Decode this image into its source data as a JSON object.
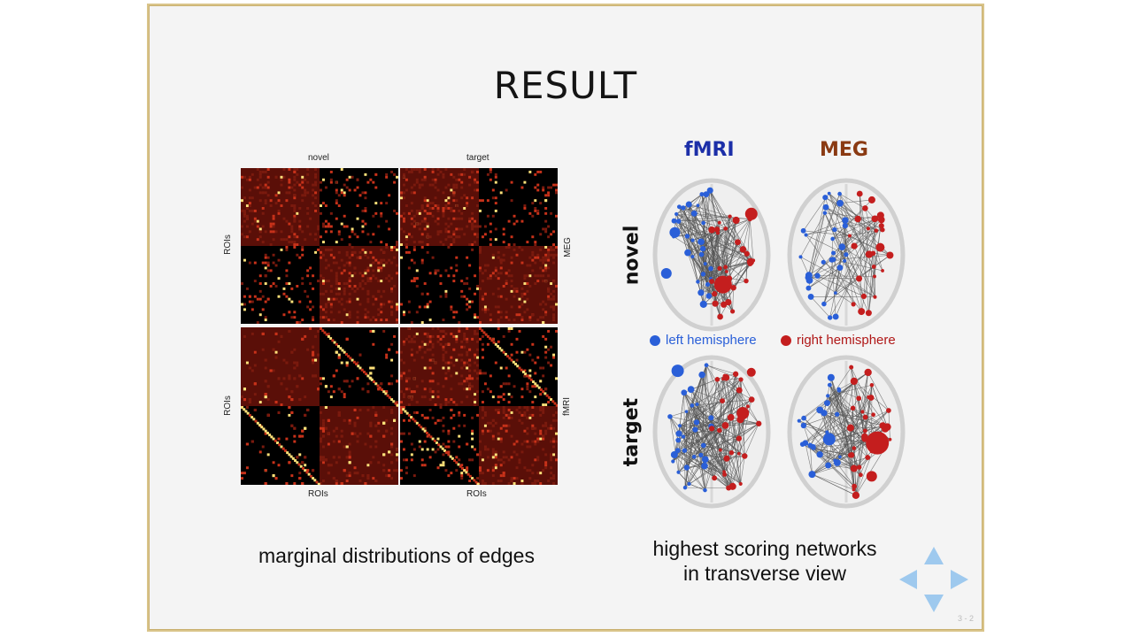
{
  "slide": {
    "title": "RESULT",
    "page_number": "3 - 2"
  },
  "heatmaps": {
    "col_labels": [
      "novel",
      "target"
    ],
    "bottom_labels": [
      "ROIs",
      "ROIs"
    ],
    "left_labels": [
      "ROIs",
      "ROIs"
    ],
    "right_labels": [
      "MEG",
      "fMRI"
    ],
    "colors": {
      "background": "#000000",
      "high": "#ffe27a",
      "mid": "#c8321a",
      "low": "#5a0f08"
    }
  },
  "networks": {
    "col_titles": [
      "fMRI",
      "MEG"
    ],
    "col_title_colors": [
      "#1c2fa8",
      "#8a3a12"
    ],
    "row_titles": [
      "novel",
      "target"
    ],
    "legend": [
      {
        "label": "left hemisphere",
        "color": "#2a5fd8",
        "text_color": "#2a5fd8"
      },
      {
        "label": "right hemisphere",
        "color": "#c41e1e",
        "text_color": "#b01818"
      }
    ]
  },
  "captions": {
    "left": "marginal distributions of edges",
    "right_line1": "highest scoring networks",
    "right_line2": "in transverse view"
  },
  "nav": {
    "arrow_color": "#9ec9ee",
    "icons": [
      "nav-up-icon",
      "nav-left-icon",
      "nav-right-icon",
      "nav-down-icon"
    ]
  }
}
